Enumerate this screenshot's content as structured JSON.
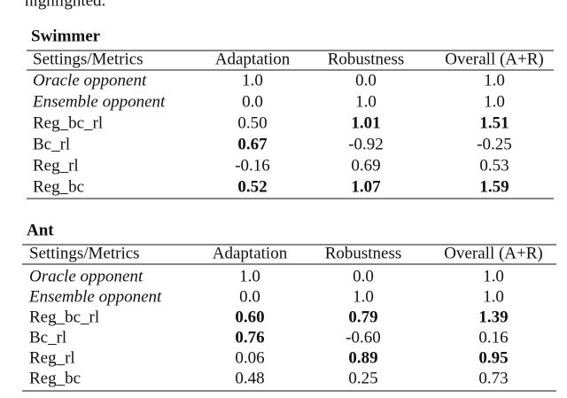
{
  "intro": "highlighted.",
  "tables": [
    {
      "title": "Swimmer",
      "header": [
        "Settings/Metrics",
        "Adaptation",
        "Robustness",
        "Overall (A+R)"
      ],
      "rows": [
        {
          "cells": [
            "Oracle opponent",
            "1.0",
            "0.0",
            "1.0"
          ],
          "italic": true,
          "bold": []
        },
        {
          "cells": [
            "Ensemble opponent",
            "0.0",
            "1.0",
            "1.0"
          ],
          "italic": true,
          "bold": []
        },
        {
          "cells": [
            "Reg_bc_rl",
            "0.50",
            "1.01",
            "1.51"
          ],
          "italic": false,
          "bold": [
            2,
            3
          ]
        },
        {
          "cells": [
            "Bc_rl",
            "0.67",
            "-0.92",
            "-0.25"
          ],
          "italic": false,
          "bold": [
            1
          ]
        },
        {
          "cells": [
            "Reg_rl",
            "-0.16",
            "0.69",
            "0.53"
          ],
          "italic": false,
          "bold": []
        },
        {
          "cells": [
            "Reg_bc",
            "0.52",
            "1.07",
            "1.59"
          ],
          "italic": false,
          "bold": [
            1,
            2,
            3
          ]
        }
      ]
    },
    {
      "title": "Ant",
      "header": [
        "Settings/Metrics",
        "Adaptation",
        "Robustness",
        "Overall (A+R)"
      ],
      "rows": [
        {
          "cells": [
            "Oracle opponent",
            "1.0",
            "0.0",
            "1.0"
          ],
          "italic": true,
          "bold": []
        },
        {
          "cells": [
            "Ensemble opponent",
            "0.0",
            "1.0",
            "1.0"
          ],
          "italic": true,
          "bold": []
        },
        {
          "cells": [
            "Reg_bc_rl",
            "0.60",
            "0.79",
            "1.39"
          ],
          "italic": false,
          "bold": [
            1,
            2,
            3
          ]
        },
        {
          "cells": [
            "Bc_rl",
            "0.76",
            "-0.60",
            "0.16"
          ],
          "italic": false,
          "bold": [
            1
          ]
        },
        {
          "cells": [
            "Reg_rl",
            "0.06",
            "0.89",
            "0.95"
          ],
          "italic": false,
          "bold": [
            2,
            3
          ]
        },
        {
          "cells": [
            "Reg_bc",
            "0.48",
            "0.25",
            "0.73"
          ],
          "italic": false,
          "bold": []
        }
      ]
    }
  ]
}
